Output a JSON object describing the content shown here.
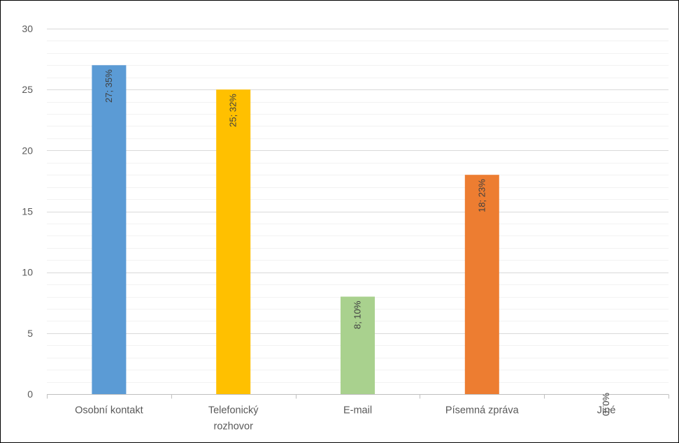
{
  "chart_data": {
    "type": "bar",
    "categories": [
      "Osobní kontakt",
      "Telefonický rozhovor",
      "E-mail",
      "Písemná zpráva",
      "Jiné"
    ],
    "category_label_lines": [
      [
        "Osobní kontakt"
      ],
      [
        "Telefonický",
        "rozhovor"
      ],
      [
        "E-mail"
      ],
      [
        "Písemná zpráva"
      ],
      [
        "Jiné"
      ]
    ],
    "values": [
      27,
      25,
      8,
      18,
      0
    ],
    "data_labels": [
      "27; 35%",
      "25; 32%",
      "8; 10%",
      "18; 23%",
      "0; 0%"
    ],
    "bar_colors": [
      "#5b9bd5",
      "#ffc000",
      "#a9d18e",
      "#ed7d31",
      "#a5a5a5"
    ],
    "ylim": [
      0,
      30
    ],
    "yticks": [
      0,
      5,
      10,
      15,
      20,
      25,
      30
    ],
    "minor_step": 1,
    "grid": true,
    "legend": "none",
    "title": "",
    "xlabel": "",
    "ylabel": ""
  }
}
